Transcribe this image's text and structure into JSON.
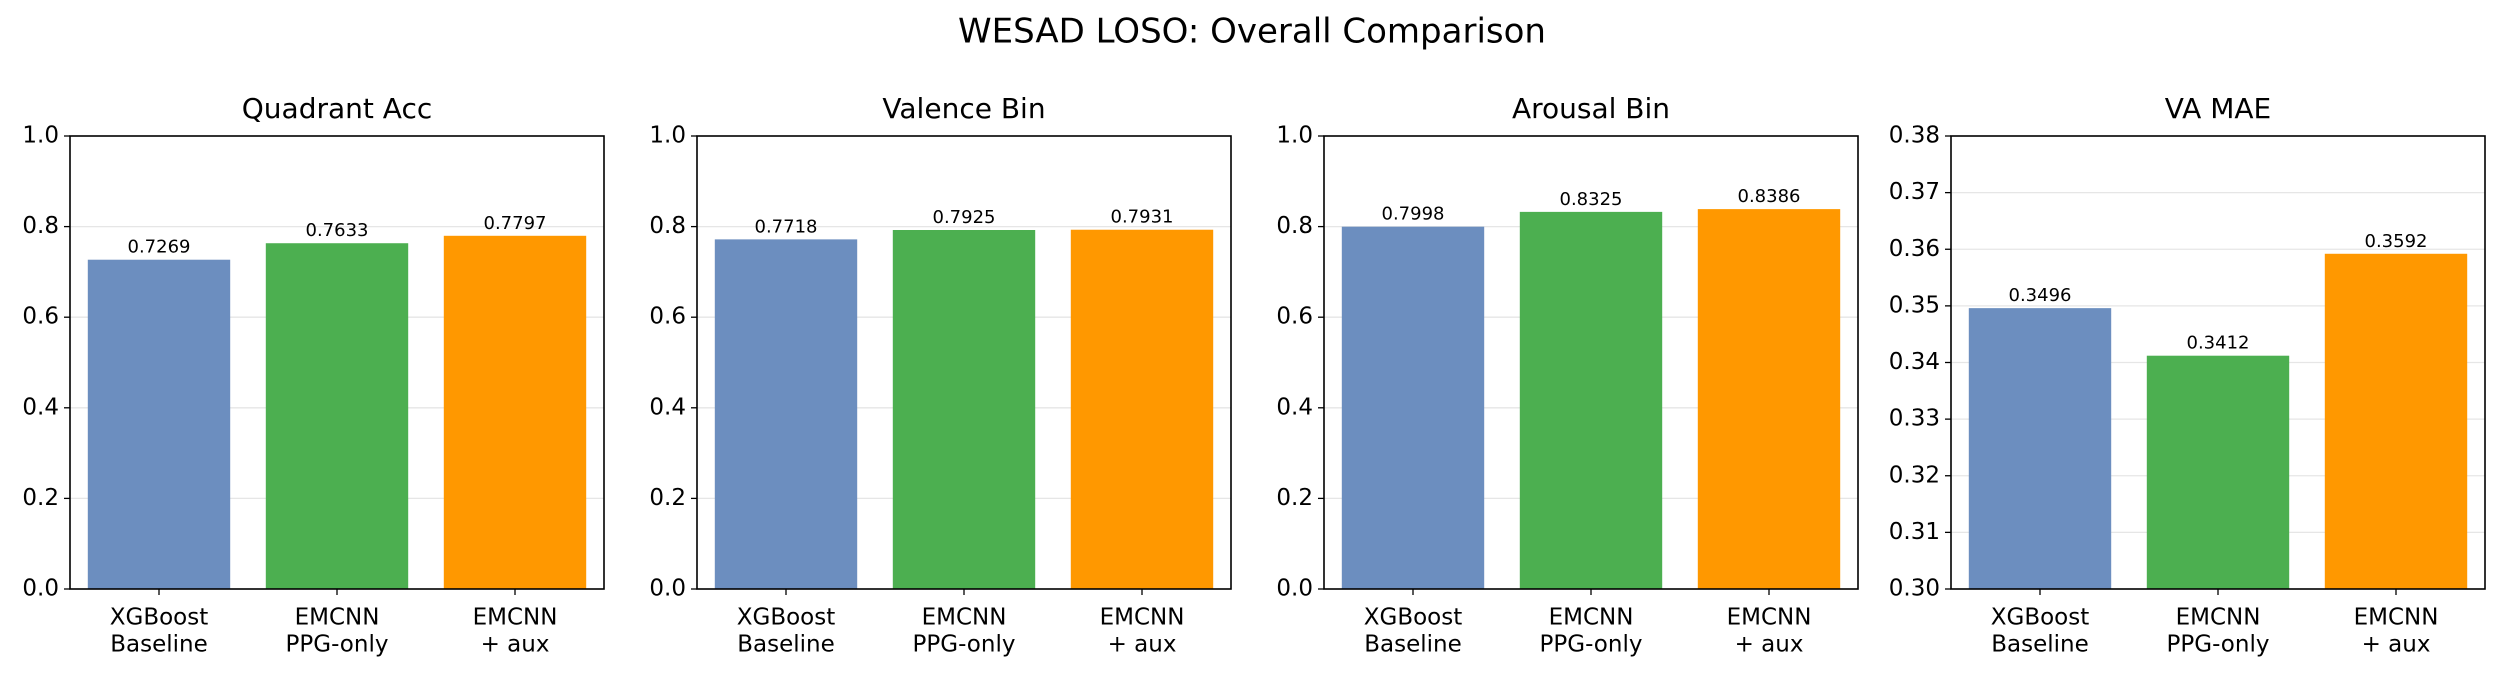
{
  "title": "WESAD LOSO: Overall Comparison",
  "chart_data": [
    {
      "type": "bar",
      "title": "Quadrant Acc",
      "categories": [
        [
          "XGBoost",
          "Baseline"
        ],
        [
          "EMCNN",
          "PPG-only"
        ],
        [
          "EMCNN",
          "+ aux"
        ]
      ],
      "values": [
        0.7269,
        0.7633,
        0.7797
      ],
      "colors": [
        "#6c8ebf",
        "#4caf50",
        "#ff9800"
      ],
      "ylim": [
        0,
        1
      ],
      "yticks": [
        {
          "value": 0,
          "label": "0.0"
        },
        {
          "value": 0.2,
          "label": "0.2"
        },
        {
          "value": 0.4,
          "label": "0.4"
        },
        {
          "value": 0.6,
          "label": "0.6"
        },
        {
          "value": 0.8,
          "label": "0.8"
        },
        {
          "value": 1,
          "label": "1.0"
        }
      ],
      "grid": true
    },
    {
      "type": "bar",
      "title": "Valence Bin",
      "categories": [
        [
          "XGBoost",
          "Baseline"
        ],
        [
          "EMCNN",
          "PPG-only"
        ],
        [
          "EMCNN",
          "+ aux"
        ]
      ],
      "values": [
        0.7718,
        0.7925,
        0.7931
      ],
      "colors": [
        "#6c8ebf",
        "#4caf50",
        "#ff9800"
      ],
      "ylim": [
        0,
        1
      ],
      "yticks": [
        {
          "value": 0,
          "label": "0.0"
        },
        {
          "value": 0.2,
          "label": "0.2"
        },
        {
          "value": 0.4,
          "label": "0.4"
        },
        {
          "value": 0.6,
          "label": "0.6"
        },
        {
          "value": 0.8,
          "label": "0.8"
        },
        {
          "value": 1,
          "label": "1.0"
        }
      ],
      "grid": true
    },
    {
      "type": "bar",
      "title": "Arousal Bin",
      "categories": [
        [
          "XGBoost",
          "Baseline"
        ],
        [
          "EMCNN",
          "PPG-only"
        ],
        [
          "EMCNN",
          "+ aux"
        ]
      ],
      "values": [
        0.7998,
        0.8325,
        0.8386
      ],
      "colors": [
        "#6c8ebf",
        "#4caf50",
        "#ff9800"
      ],
      "ylim": [
        0,
        1
      ],
      "yticks": [
        {
          "value": 0,
          "label": "0.0"
        },
        {
          "value": 0.2,
          "label": "0.2"
        },
        {
          "value": 0.4,
          "label": "0.4"
        },
        {
          "value": 0.6,
          "label": "0.6"
        },
        {
          "value": 0.8,
          "label": "0.8"
        },
        {
          "value": 1,
          "label": "1.0"
        }
      ],
      "grid": true
    },
    {
      "type": "bar",
      "title": "VA MAE",
      "categories": [
        [
          "XGBoost",
          "Baseline"
        ],
        [
          "EMCNN",
          "PPG-only"
        ],
        [
          "EMCNN",
          "+ aux"
        ]
      ],
      "values": [
        0.3496,
        0.3412,
        0.3592
      ],
      "colors": [
        "#6c8ebf",
        "#4caf50",
        "#ff9800"
      ],
      "ylim": [
        0.3,
        0.38
      ],
      "yticks": [
        {
          "value": 0.3,
          "label": "0.30"
        },
        {
          "value": 0.31,
          "label": "0.31"
        },
        {
          "value": 0.32,
          "label": "0.32"
        },
        {
          "value": 0.33,
          "label": "0.33"
        },
        {
          "value": 0.34,
          "label": "0.34"
        },
        {
          "value": 0.35,
          "label": "0.35"
        },
        {
          "value": 0.36,
          "label": "0.36"
        },
        {
          "value": 0.37,
          "label": "0.37"
        },
        {
          "value": 0.38,
          "label": "0.38"
        }
      ],
      "grid": true
    }
  ]
}
